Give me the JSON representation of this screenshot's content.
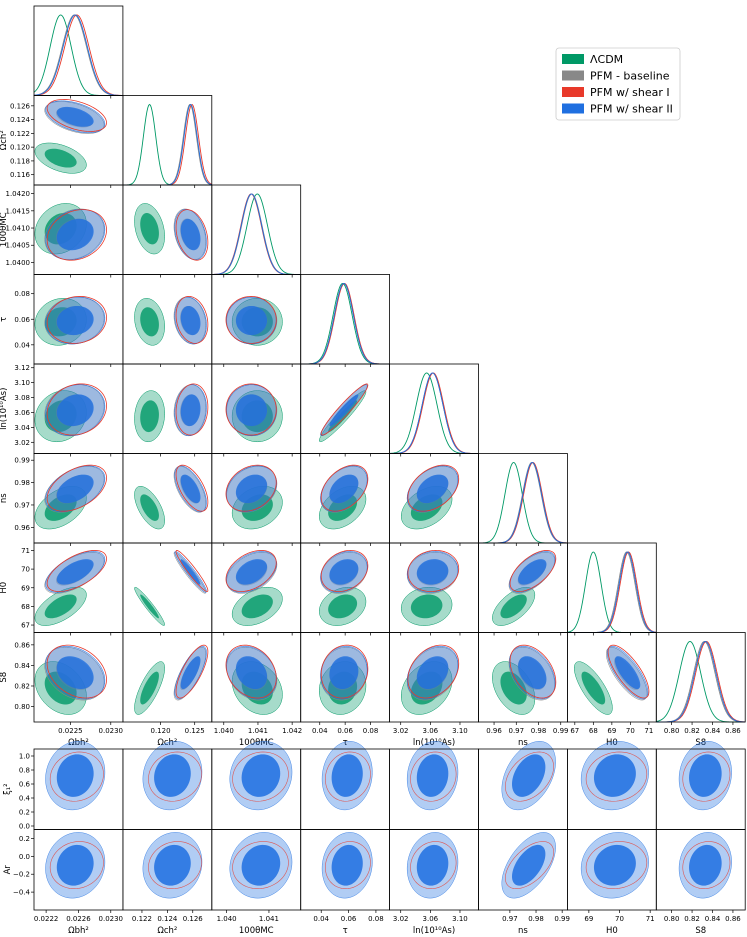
{
  "chart_data": {
    "type": "triangle",
    "legend": {
      "placement": "top-right",
      "entries": [
        {
          "label": "ΛCDM",
          "color": "#009966"
        },
        {
          "label": "PFM - baseline",
          "color": "#888888"
        },
        {
          "label": "PFM w/ shear I",
          "color": "#e8392a"
        },
        {
          "label": "PFM w/ shear II",
          "color": "#1f6fe0"
        }
      ]
    },
    "parameters": [
      {
        "key": "ombh2",
        "label": "Ωbh²",
        "range": [
          0.02205,
          0.02315
        ],
        "ticks": [
          "0.0225",
          "0.0230"
        ],
        "tick_values": [
          0.0225,
          0.023
        ]
      },
      {
        "key": "omch2",
        "label": "Ωch²",
        "range": [
          0.1145,
          0.1275
        ],
        "ticks": [
          "0.120",
          "0.125"
        ],
        "tick_values": [
          0.12,
          0.125
        ],
        "yticks": [
          "0.116",
          "0.118",
          "0.120",
          "0.122",
          "0.124",
          "0.126"
        ],
        "ytick_values": [
          0.116,
          0.118,
          0.12,
          0.122,
          0.124,
          0.126
        ]
      },
      {
        "key": "theta",
        "label": "100θMC",
        "range": [
          1.03965,
          1.04225
        ],
        "ticks": [
          "1.040",
          "1.041",
          "1.042"
        ],
        "tick_values": [
          1.04,
          1.041,
          1.042
        ],
        "yticks": [
          "1.0400",
          "1.0405",
          "1.0410",
          "1.0415",
          "1.0420"
        ],
        "ytick_values": [
          1.04,
          1.0405,
          1.041,
          1.0415,
          1.042
        ]
      },
      {
        "key": "tau",
        "label": "τ",
        "range": [
          0.025,
          0.095
        ],
        "ticks": [
          "0.04",
          "0.06",
          "0.08"
        ],
        "tick_values": [
          0.04,
          0.06,
          0.08
        ],
        "yticks": [
          "0.04",
          "0.06",
          "0.08"
        ],
        "ytick_values": [
          0.04,
          0.06,
          0.08
        ]
      },
      {
        "key": "logA",
        "label": "ln(10¹⁰As)",
        "range": [
          3.005,
          3.125
        ],
        "ticks": [
          "3.02",
          "3.06",
          "3.10"
        ],
        "tick_values": [
          3.02,
          3.06,
          3.1
        ],
        "yticks": [
          "3.02",
          "3.04",
          "3.06",
          "3.08",
          "3.10",
          "3.12"
        ],
        "ytick_values": [
          3.02,
          3.04,
          3.06,
          3.08,
          3.1,
          3.12
        ]
      },
      {
        "key": "ns",
        "label": "ns",
        "range": [
          0.953,
          0.993
        ],
        "ticks": [
          "0.96",
          "0.97",
          "0.98",
          "0.99"
        ],
        "tick_values": [
          0.96,
          0.97,
          0.98,
          0.99
        ],
        "yticks": [
          "0.96",
          "0.97",
          "0.98",
          "0.99"
        ],
        "ytick_values": [
          0.96,
          0.97,
          0.98,
          0.99
        ]
      },
      {
        "key": "H0",
        "label": "H0",
        "range": [
          66.6,
          71.4
        ],
        "ticks": [
          "67",
          "68",
          "69",
          "70",
          "71"
        ],
        "tick_values": [
          67,
          68,
          69,
          70,
          71
        ],
        "yticks": [
          "67",
          "68",
          "69",
          "70",
          "71"
        ],
        "ytick_values": [
          67,
          68,
          69,
          70,
          71
        ]
      },
      {
        "key": "S8",
        "label": "S8",
        "range": [
          0.785,
          0.872
        ],
        "ticks": [
          "0.80",
          "0.82",
          "0.84",
          "0.86"
        ],
        "tick_values": [
          0.8,
          0.82,
          0.84,
          0.86
        ],
        "yticks": [
          "0.80",
          "0.82",
          "0.84",
          "0.86"
        ],
        "ytick_values": [
          0.8,
          0.82,
          0.84,
          0.86
        ]
      }
    ],
    "extra_rows": [
      {
        "key": "xi",
        "label": "ξ₁²",
        "range": [
          -0.05,
          1.1
        ],
        "yticks": [
          "0.0",
          "0.2",
          "0.4",
          "0.6",
          "0.8",
          "1.0"
        ],
        "ytick_values": [
          0,
          0.2,
          0.4,
          0.6,
          0.8,
          1.0
        ]
      },
      {
        "key": "Ar",
        "label": "Ar",
        "range": [
          -0.6,
          0.3
        ],
        "yticks": [
          "−0.4",
          "−0.2",
          "0.0",
          "0.2"
        ],
        "ytick_values": [
          -0.4,
          -0.2,
          0,
          0.2
        ]
      }
    ],
    "extra_xaxis": [
      {
        "label": "Ωbh²",
        "range": [
          0.02205,
          0.02315
        ],
        "ticks": [
          "0.0222",
          "0.0226",
          "0.0230"
        ],
        "tick_values": [
          0.0222,
          0.0226,
          0.023
        ]
      },
      {
        "label": "Ωch²",
        "range": [
          0.1205,
          0.1275
        ],
        "ticks": [
          "0.122",
          "0.124",
          "0.126"
        ],
        "tick_values": [
          0.122,
          0.124,
          0.126
        ]
      },
      {
        "label": "100θMC",
        "range": [
          1.03965,
          1.04175
        ],
        "ticks": [
          "1.040",
          "1.041"
        ],
        "tick_values": [
          1.04,
          1.041
        ]
      },
      {
        "label": "τ",
        "range": [
          0.025,
          0.09
        ],
        "ticks": [
          "0.04",
          "0.06",
          "0.08"
        ],
        "tick_values": [
          0.04,
          0.06,
          0.08
        ]
      },
      {
        "label": "ln(10¹⁰As)",
        "range": [
          3.005,
          3.125
        ],
        "ticks": [
          "3.02",
          "3.06",
          "3.10"
        ],
        "tick_values": [
          3.02,
          3.06,
          3.1
        ]
      },
      {
        "label": "ns",
        "range": [
          0.958,
          0.992
        ],
        "ticks": [
          "0.97",
          "0.98",
          "0.99"
        ],
        "tick_values": [
          0.97,
          0.98,
          0.99
        ]
      },
      {
        "label": "H0",
        "range": [
          68.3,
          71.2
        ],
        "ticks": [
          "69",
          "70",
          "71"
        ],
        "tick_values": [
          69,
          70,
          71
        ]
      },
      {
        "label": "S8",
        "range": [
          0.785,
          0.872
        ],
        "ticks": [
          "0.80",
          "0.82",
          "0.84",
          "0.86"
        ],
        "tick_values": [
          0.8,
          0.82,
          0.84,
          0.86
        ]
      }
    ],
    "series": [
      {
        "name": "ΛCDM",
        "color": "#009966",
        "mean": {
          "ombh2": 0.02238,
          "omch2": 0.1184,
          "theta": 1.04098,
          "tau": 0.058,
          "logA": 3.055,
          "ns": 0.9688,
          "H0": 68.0,
          "S8": 0.818
        },
        "sigma": {
          "ombh2": 0.00013,
          "omch2": 0.0009,
          "theta": 0.0003,
          "tau": 0.0075,
          "logA": 0.014,
          "ns": 0.0039,
          "H0": 0.42,
          "S8": 0.0105
        }
      },
      {
        "name": "PFM - baseline",
        "color": "#888888",
        "mean": {
          "ombh2": 0.02255,
          "omch2": 0.1243,
          "theta": 1.04082,
          "tau": 0.059,
          "logA": 3.063,
          "ns": 0.977,
          "H0": 69.8,
          "S8": 0.832
        },
        "sigma": {
          "ombh2": 0.00015,
          "omch2": 0.00095,
          "theta": 0.0003,
          "tau": 0.0075,
          "logA": 0.014,
          "ns": 0.0042,
          "H0": 0.45,
          "S8": 0.0105
        }
      },
      {
        "name": "PFM w/ shear I",
        "color": "#e8392a",
        "mean": {
          "ombh2": 0.02258,
          "omch2": 0.1246,
          "theta": 1.0408,
          "tau": 0.0595,
          "logA": 3.064,
          "ns": 0.9775,
          "H0": 69.9,
          "S8": 0.834
        },
        "sigma": {
          "ombh2": 0.00015,
          "omch2": 0.00095,
          "theta": 0.0003,
          "tau": 0.0075,
          "logA": 0.014,
          "ns": 0.0042,
          "H0": 0.45,
          "S8": 0.0105
        }
      },
      {
        "name": "PFM w/ shear II",
        "color": "#1f6fe0",
        "mean": {
          "ombh2": 0.02256,
          "omch2": 0.1244,
          "theta": 1.04081,
          "tau": 0.059,
          "logA": 3.063,
          "ns": 0.9772,
          "H0": 69.85,
          "S8": 0.833,
          "xi": 0.72,
          "Ar": -0.1
        },
        "sigma": {
          "ombh2": 0.00015,
          "omch2": 0.00095,
          "theta": 0.0003,
          "tau": 0.0075,
          "logA": 0.014,
          "ns": 0.0042,
          "H0": 0.45,
          "S8": 0.0105,
          "xi": 0.2,
          "Ar": 0.15
        }
      }
    ]
  }
}
